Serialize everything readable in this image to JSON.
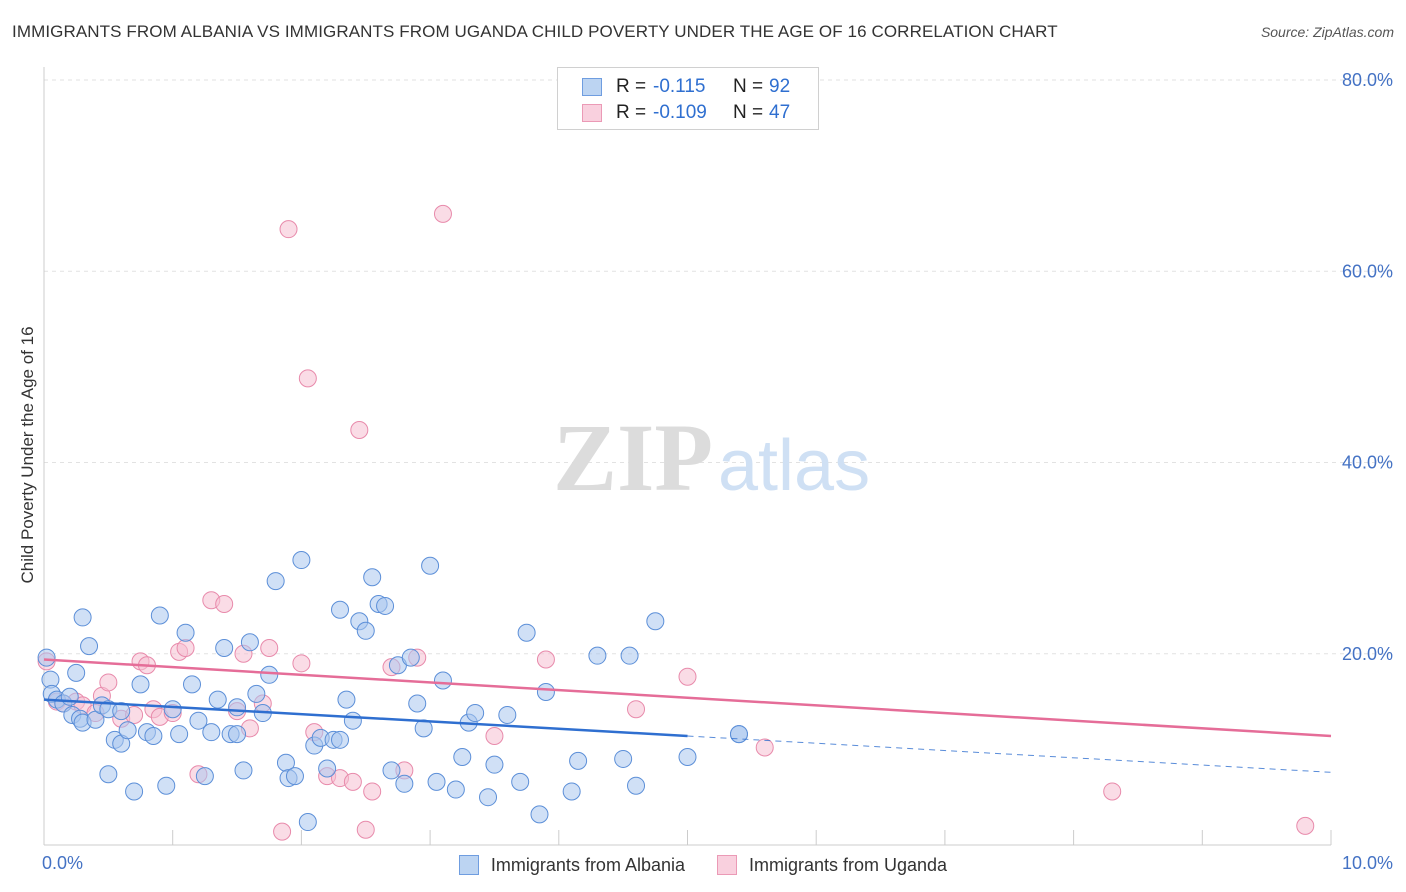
{
  "title": "IMMIGRANTS FROM ALBANIA VS IMMIGRANTS FROM UGANDA CHILD POVERTY UNDER THE AGE OF 16 CORRELATION CHART",
  "source": "Source: ZipAtlas.com",
  "watermark": {
    "zip": "ZIP",
    "atlas": "atlas"
  },
  "colors": {
    "albania_fill": "#a9c7ee",
    "albania_stroke": "#5c8fd8",
    "albania_line": "#2f6fd0",
    "uganda_fill": "#f6c0d2",
    "uganda_stroke": "#e88aab",
    "uganda_line": "#e56d98",
    "axis_text": "#4472c4",
    "value_text": "#2f6fd0"
  },
  "legend": {
    "rows": [
      {
        "r_label": "R =",
        "r_value": "-0.115",
        "n_label": "N =",
        "n_value": "92"
      },
      {
        "r_label": "R =",
        "r_value": "-0.109",
        "n_label": "N =",
        "n_value": "47"
      }
    ]
  },
  "bottom_legend": [
    "Immigrants from Albania",
    "Immigrants from Uganda"
  ],
  "chart_data": {
    "type": "scatter",
    "title": "IMMIGRANTS FROM ALBANIA VS IMMIGRANTS FROM UGANDA CHILD POVERTY UNDER THE AGE OF 16 CORRELATION CHART",
    "xlabel": "",
    "ylabel": "Child Poverty Under the Age of 16",
    "xlim": [
      0,
      10
    ],
    "ylim": [
      0,
      80
    ],
    "x_unit": "%",
    "y_unit": "%",
    "x_tick_labels": [
      "0.0%",
      "10.0%"
    ],
    "x_tick_label_values": [
      0,
      10
    ],
    "y_ticks": [
      20,
      40,
      60,
      80
    ],
    "y_tick_labels": [
      "20.0%",
      "40.0%",
      "60.0%",
      "80.0%"
    ],
    "grid": "horizontal dashed",
    "legend_position": "top-center",
    "series": [
      {
        "name": "Immigrants from Albania",
        "r": -0.115,
        "n": 92,
        "trend": {
          "x": [
            0,
            5
          ],
          "y": [
            15.2,
            11.4
          ]
        },
        "trend_dashed": {
          "x": [
            5,
            10
          ],
          "y": [
            11.4,
            7.6
          ]
        },
        "points": [
          [
            0.02,
            19.6
          ],
          [
            0.05,
            17.3
          ],
          [
            0.06,
            15.8
          ],
          [
            0.1,
            15.2
          ],
          [
            0.15,
            14.8
          ],
          [
            0.2,
            15.5
          ],
          [
            0.22,
            13.6
          ],
          [
            0.25,
            18.0
          ],
          [
            0.28,
            13.2
          ],
          [
            0.3,
            12.8
          ],
          [
            0.35,
            20.8
          ],
          [
            0.4,
            13.1
          ],
          [
            0.3,
            23.8
          ],
          [
            0.45,
            14.6
          ],
          [
            0.5,
            14.2
          ],
          [
            0.55,
            11.0
          ],
          [
            0.6,
            10.6
          ],
          [
            0.65,
            12.0
          ],
          [
            0.5,
            7.4
          ],
          [
            0.7,
            5.6
          ],
          [
            0.75,
            16.8
          ],
          [
            0.8,
            11.8
          ],
          [
            0.85,
            11.4
          ],
          [
            0.6,
            14.0
          ],
          [
            0.9,
            24.0
          ],
          [
            0.95,
            6.2
          ],
          [
            1.0,
            14.2
          ],
          [
            1.05,
            11.6
          ],
          [
            1.1,
            22.2
          ],
          [
            1.15,
            16.8
          ],
          [
            1.2,
            13.0
          ],
          [
            1.25,
            7.2
          ],
          [
            1.3,
            11.8
          ],
          [
            1.35,
            15.2
          ],
          [
            1.4,
            20.6
          ],
          [
            1.45,
            11.6
          ],
          [
            1.5,
            14.4
          ],
          [
            1.55,
            7.8
          ],
          [
            1.6,
            21.2
          ],
          [
            1.65,
            15.8
          ],
          [
            1.7,
            13.8
          ],
          [
            1.75,
            17.8
          ],
          [
            1.8,
            27.6
          ],
          [
            1.88,
            8.6
          ],
          [
            1.9,
            7.0
          ],
          [
            1.95,
            7.2
          ],
          [
            2.0,
            29.8
          ],
          [
            2.05,
            2.4
          ],
          [
            2.1,
            10.4
          ],
          [
            2.15,
            11.2
          ],
          [
            2.2,
            8.0
          ],
          [
            2.25,
            11.0
          ],
          [
            2.3,
            11.0
          ],
          [
            2.3,
            24.6
          ],
          [
            2.35,
            15.2
          ],
          [
            2.4,
            13.0
          ],
          [
            2.45,
            23.4
          ],
          [
            2.5,
            22.4
          ],
          [
            2.55,
            28.0
          ],
          [
            2.6,
            25.2
          ],
          [
            2.65,
            25.0
          ],
          [
            2.7,
            7.8
          ],
          [
            2.75,
            18.8
          ],
          [
            2.8,
            6.4
          ],
          [
            2.85,
            19.6
          ],
          [
            2.9,
            14.8
          ],
          [
            2.95,
            12.2
          ],
          [
            3.0,
            29.2
          ],
          [
            3.05,
            6.6
          ],
          [
            3.1,
            17.2
          ],
          [
            3.2,
            5.8
          ],
          [
            3.25,
            9.2
          ],
          [
            3.3,
            12.8
          ],
          [
            3.35,
            13.8
          ],
          [
            3.45,
            5.0
          ],
          [
            3.5,
            8.4
          ],
          [
            3.6,
            13.6
          ],
          [
            3.7,
            6.6
          ],
          [
            3.75,
            22.2
          ],
          [
            3.85,
            3.2
          ],
          [
            3.9,
            16.0
          ],
          [
            4.1,
            5.6
          ],
          [
            4.15,
            8.8
          ],
          [
            4.3,
            19.8
          ],
          [
            4.5,
            9.0
          ],
          [
            4.55,
            19.8
          ],
          [
            4.6,
            6.2
          ],
          [
            4.75,
            23.4
          ],
          [
            5.4,
            11.6
          ],
          [
            5.4,
            11.6
          ],
          [
            5.0,
            9.2
          ],
          [
            1.5,
            11.6
          ]
        ]
      },
      {
        "name": "Immigrants from Uganda",
        "r": -0.109,
        "n": 47,
        "trend": {
          "x": [
            0,
            10
          ],
          "y": [
            19.4,
            11.4
          ]
        },
        "points": [
          [
            0.02,
            19.2
          ],
          [
            0.1,
            15.0
          ],
          [
            0.15,
            14.8
          ],
          [
            0.25,
            15.0
          ],
          [
            0.3,
            14.6
          ],
          [
            0.4,
            13.8
          ],
          [
            0.45,
            15.6
          ],
          [
            0.5,
            17.0
          ],
          [
            0.6,
            13.2
          ],
          [
            0.7,
            13.6
          ],
          [
            0.75,
            19.2
          ],
          [
            0.8,
            18.8
          ],
          [
            0.85,
            14.2
          ],
          [
            0.9,
            13.4
          ],
          [
            1.0,
            13.8
          ],
          [
            1.05,
            20.2
          ],
          [
            1.1,
            20.6
          ],
          [
            1.2,
            7.4
          ],
          [
            1.3,
            25.6
          ],
          [
            1.4,
            25.2
          ],
          [
            1.5,
            14.0
          ],
          [
            1.55,
            20.0
          ],
          [
            1.6,
            12.2
          ],
          [
            1.7,
            14.8
          ],
          [
            1.75,
            20.6
          ],
          [
            1.85,
            1.4
          ],
          [
            1.9,
            64.4
          ],
          [
            2.0,
            19.0
          ],
          [
            2.05,
            48.8
          ],
          [
            2.1,
            11.8
          ],
          [
            2.2,
            7.2
          ],
          [
            2.3,
            7.0
          ],
          [
            2.4,
            6.6
          ],
          [
            2.45,
            43.4
          ],
          [
            2.5,
            1.6
          ],
          [
            2.55,
            5.6
          ],
          [
            2.7,
            18.6
          ],
          [
            2.8,
            7.8
          ],
          [
            2.9,
            19.6
          ],
          [
            3.1,
            66.0
          ],
          [
            3.5,
            11.4
          ],
          [
            3.9,
            19.4
          ],
          [
            4.6,
            14.2
          ],
          [
            5.0,
            17.6
          ],
          [
            5.6,
            10.2
          ],
          [
            8.3,
            5.6
          ],
          [
            9.8,
            2.0
          ]
        ]
      }
    ]
  }
}
